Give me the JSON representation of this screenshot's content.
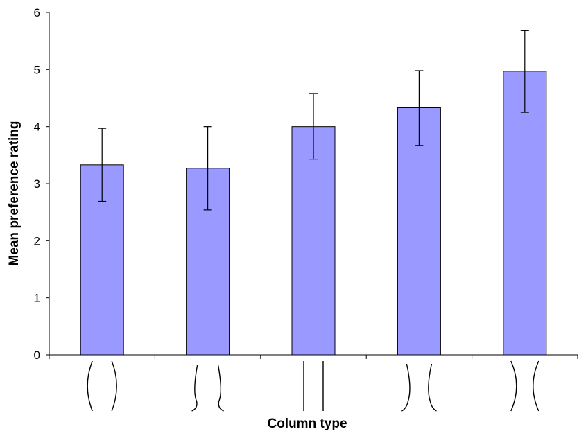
{
  "chart_data": {
    "type": "bar",
    "title": "",
    "xlabel": "Column type",
    "ylabel": "Mean preference rating",
    "ylim": [
      0,
      6
    ],
    "yticks": [
      0,
      1,
      2,
      3,
      4,
      5,
      6
    ],
    "categories": [
      "widening-middle",
      "narrowing-base-curved",
      "straight",
      "narrowing-middle",
      "narrowing-middle-strong"
    ],
    "series": [
      {
        "values": [
          3.33,
          3.27,
          4.0,
          4.33,
          4.97
        ],
        "error_low": [
          2.69,
          2.54,
          3.43,
          3.67,
          4.25
        ],
        "error_high": [
          3.97,
          4.0,
          4.58,
          4.98,
          5.68
        ]
      }
    ],
    "bar_color": "#9999ff",
    "grid": false,
    "legend": "none"
  }
}
